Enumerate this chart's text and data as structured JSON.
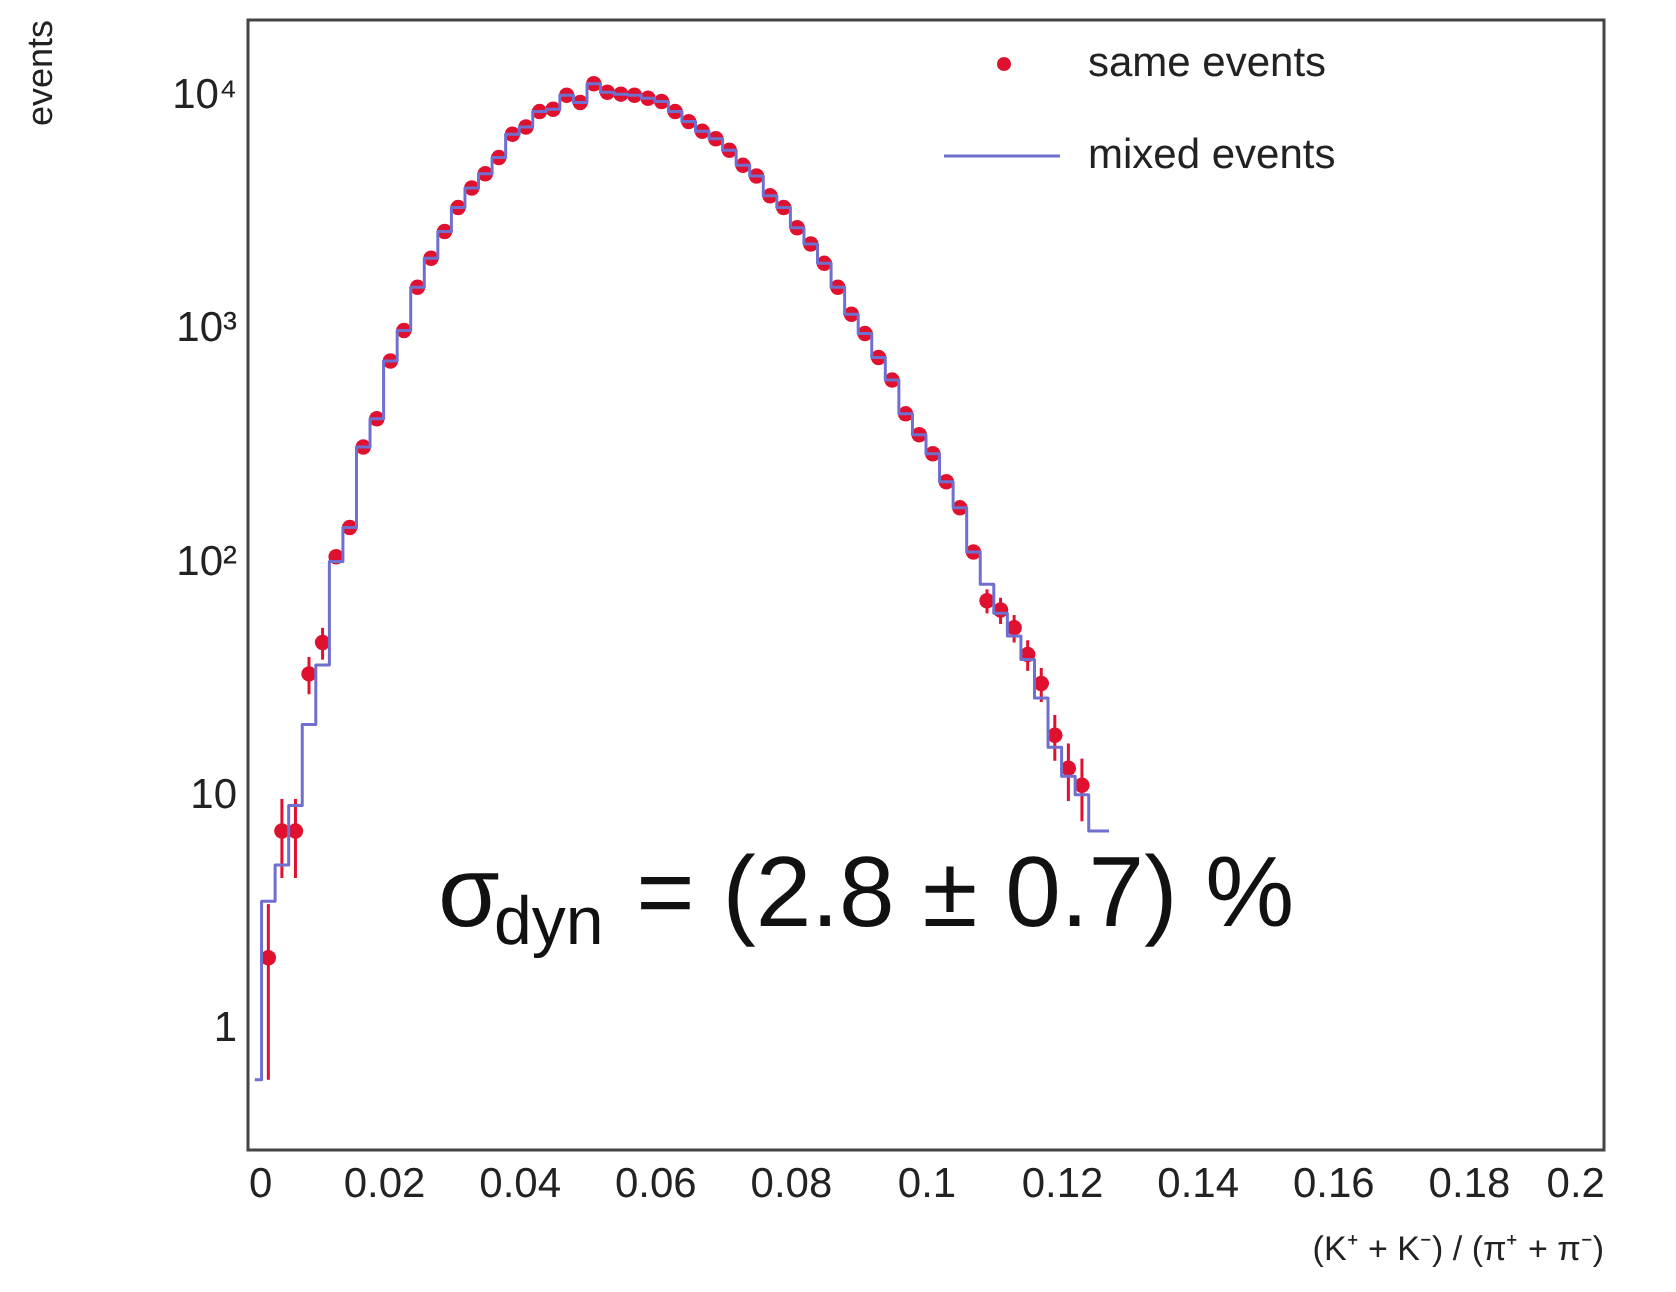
{
  "chart_data": {
    "type": "scatter",
    "xlabel": "(K⁺ + K⁻) / (π⁺ + π⁻)",
    "ylabel": "events",
    "log": "y",
    "grid": false,
    "legend": "top right",
    "xlim": [
      0,
      0.2
    ],
    "xticks": [
      0,
      0.02,
      0.04,
      0.06,
      0.08,
      0.1,
      0.12,
      0.14,
      0.16,
      0.18,
      0.2
    ],
    "ylim": [
      0.3,
      21000
    ],
    "yticks": [
      1,
      10,
      {
        "value": 100,
        "label": "10²"
      },
      {
        "value": 1000,
        "label": "10³"
      },
      {
        "value": 10000,
        "label": "10⁴"
      }
    ],
    "annotations": [
      "σ$_{dyn}$ = (2.8 ± 0.7) %"
    ],
    "series": [
      {
        "name": "same events",
        "marker": "circle",
        "color": "#e0102f",
        "x": [
          0.003,
          0.005,
          0.007,
          0.009,
          0.011,
          0.013,
          0.015,
          0.017,
          0.019,
          0.021,
          0.023,
          0.025,
          0.027,
          0.029,
          0.031,
          0.033,
          0.035,
          0.037,
          0.039,
          0.041,
          0.043,
          0.045,
          0.047,
          0.049,
          0.051,
          0.053,
          0.055,
          0.057,
          0.059,
          0.061,
          0.063,
          0.065,
          0.067,
          0.069,
          0.071,
          0.073,
          0.075,
          0.077,
          0.079,
          0.081,
          0.083,
          0.085,
          0.087,
          0.089,
          0.091,
          0.093,
          0.095,
          0.097,
          0.099,
          0.101,
          0.103,
          0.105,
          0.107,
          0.109,
          0.111,
          0.113,
          0.115,
          0.117,
          0.119,
          0.121,
          0.123
        ],
        "values": [
          2,
          7,
          7,
          33,
          45,
          105,
          140,
          310,
          410,
          725,
          980,
          1500,
          2000,
          2600,
          3300,
          4000,
          4600,
          5400,
          6800,
          7300,
          8500,
          8700,
          10000,
          9300,
          11200,
          10300,
          10100,
          10000,
          9700,
          9400,
          8500,
          7700,
          7000,
          6500,
          5800,
          5000,
          4500,
          3700,
          3300,
          2700,
          2300,
          1900,
          1500,
          1150,
          950,
          750,
          600,
          430,
          350,
          290,
          220,
          170,
          110,
          68,
          62,
          52,
          40,
          30,
          18,
          13,
          11
        ],
        "errors": [
          1.4,
          2.6,
          2.6,
          6,
          7,
          null,
          null,
          null,
          null,
          null,
          null,
          null,
          null,
          null,
          null,
          null,
          null,
          null,
          null,
          null,
          null,
          null,
          null,
          null,
          null,
          null,
          null,
          null,
          null,
          null,
          null,
          null,
          null,
          null,
          null,
          null,
          null,
          null,
          null,
          null,
          null,
          null,
          null,
          null,
          null,
          null,
          null,
          null,
          null,
          null,
          null,
          null,
          null,
          8,
          8,
          7,
          6,
          5,
          4,
          3.6,
          3.3
        ]
      },
      {
        "name": "mixed events",
        "type": "step",
        "color": "#6f6fd0",
        "x": [
          0.001,
          0.003,
          0.005,
          0.007,
          0.009,
          0.011,
          0.013,
          0.015,
          0.017,
          0.019,
          0.021,
          0.023,
          0.025,
          0.027,
          0.029,
          0.031,
          0.033,
          0.035,
          0.037,
          0.039,
          0.041,
          0.043,
          0.045,
          0.047,
          0.049,
          0.051,
          0.053,
          0.055,
          0.057,
          0.059,
          0.061,
          0.063,
          0.065,
          0.067,
          0.069,
          0.071,
          0.073,
          0.075,
          0.077,
          0.079,
          0.081,
          0.083,
          0.085,
          0.087,
          0.089,
          0.091,
          0.093,
          0.095,
          0.097,
          0.099,
          0.101,
          0.103,
          0.105,
          0.107,
          0.109,
          0.111,
          0.113,
          0.115,
          0.117,
          0.119,
          0.121,
          0.123,
          0.125,
          0.127
        ],
        "values": [
          0.6,
          3.5,
          5,
          9,
          20,
          36,
          100,
          140,
          310,
          410,
          725,
          980,
          1500,
          2000,
          2600,
          3300,
          4000,
          4600,
          5400,
          6800,
          7300,
          8500,
          8700,
          10000,
          9300,
          11200,
          10300,
          10100,
          10000,
          9700,
          9400,
          8500,
          7700,
          7000,
          6500,
          5800,
          5000,
          4500,
          3700,
          3300,
          2700,
          2300,
          1900,
          1500,
          1150,
          950,
          750,
          600,
          430,
          350,
          290,
          220,
          170,
          110,
          80,
          60,
          48,
          38,
          26,
          16,
          12,
          10,
          7,
          7
        ]
      }
    ]
  }
}
